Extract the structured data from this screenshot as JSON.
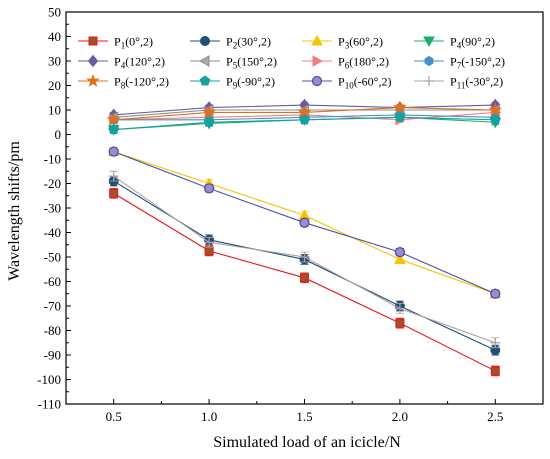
{
  "chart_data": {
    "type": "line",
    "xlabel": "Simulated load of an icicle/N",
    "ylabel": "Wavelength shifts/pm",
    "xlim": [
      0.25,
      2.75
    ],
    "ylim": [
      -110,
      50
    ],
    "x_ticks": [
      0.5,
      1.0,
      1.5,
      2.0,
      2.5
    ],
    "x_tick_labels": [
      "0.5",
      "1.0",
      "1.5",
      "2.0",
      "2.5"
    ],
    "y_ticks": [
      50,
      40,
      30,
      20,
      10,
      0,
      -10,
      -20,
      -30,
      -40,
      -50,
      -60,
      -70,
      -80,
      -90,
      -100,
      -110
    ],
    "y_tick_labels": [
      "50",
      "40",
      "30",
      "20",
      "10",
      "0",
      "-10",
      "-20",
      "-30",
      "-40",
      "-50",
      "-60",
      "-70",
      "-80",
      "-90",
      "-100",
      "-110"
    ],
    "grid": false,
    "legend_position": "top",
    "x": [
      0.5,
      1.0,
      1.5,
      2.0,
      2.5
    ],
    "series": [
      {
        "name": "P",
        "sub": "1",
        "args": "(0°,2)",
        "marker": "square",
        "color": "#e8151b",
        "fill": "#a0522d",
        "values": [
          -24,
          -47.5,
          -58.5,
          -77,
          -96.5
        ],
        "err": 2
      },
      {
        "name": "P",
        "sub": "2",
        "args": "(30°,2)",
        "marker": "circle",
        "color": "#1f4e79",
        "fill": "#1f4e79",
        "values": [
          -19,
          -43,
          -51,
          -70,
          -88
        ],
        "err": 2
      },
      {
        "name": "P",
        "sub": "3",
        "args": "(60°,2)",
        "marker": "triangle",
        "color": "#f5c400",
        "fill": "#f5c400",
        "values": [
          -7,
          -20,
          -33,
          -51,
          -65
        ],
        "err": 1.5
      },
      {
        "name": "P",
        "sub": "4",
        "args": "(90°,2)",
        "marker": "triangle-down",
        "color": "#18b06a",
        "fill": "#18b06a",
        "values": [
          2,
          4.5,
          6,
          7,
          5
        ],
        "err": 1
      },
      {
        "name": "P",
        "sub": "4",
        "args": "(120°,2)",
        "marker": "diamond",
        "color": "#6a5a9e",
        "fill": "#6a5a9e",
        "values": [
          8,
          11,
          12,
          11,
          12
        ],
        "err": 1
      },
      {
        "name": "P",
        "sub": "5",
        "args": "(150°,2)",
        "marker": "triangle-left",
        "color": "#8c8c8c",
        "fill": "#a9a9a9",
        "values": [
          7,
          10,
          10,
          10,
          10
        ],
        "err": 1
      },
      {
        "name": "P",
        "sub": "6",
        "args": "(180°,2)",
        "marker": "triangle-right",
        "color": "#f08080",
        "fill": "#f08080",
        "values": [
          6,
          7,
          8,
          6,
          9
        ],
        "err": 1
      },
      {
        "name": "P",
        "sub": "7",
        "args": "(-150°,2)",
        "marker": "hexagon",
        "color": "#4a90c8",
        "fill": "#4a90c8",
        "values": [
          6,
          6,
          7,
          8,
          7
        ],
        "err": 1
      },
      {
        "name": "P",
        "sub": "8",
        "args": "(-120°,2)",
        "marker": "star",
        "color": "#e07020",
        "fill": "#e07020",
        "values": [
          6,
          9,
          9,
          11,
          10
        ],
        "err": 1
      },
      {
        "name": "P",
        "sub": "9",
        "args": "(-90°,2)",
        "marker": "pentagon",
        "color": "#17a0a0",
        "fill": "#17a0a0",
        "values": [
          2,
          5,
          6,
          7,
          6
        ],
        "err": 1
      },
      {
        "name": "P",
        "sub": "10",
        "args": "(-60°,2)",
        "marker": "circle-open",
        "color": "#5050a0",
        "fill": "#9a8cd0",
        "values": [
          -7,
          -22,
          -36,
          -48,
          -65
        ],
        "err": 1.5
      },
      {
        "name": "P",
        "sub": "11",
        "args": "(-30°,2)",
        "marker": "plus",
        "color": "#b0a0a0",
        "fill": "#b0a0a0",
        "values": [
          -17,
          -44,
          -50,
          -71,
          -85
        ],
        "err": 2
      }
    ]
  }
}
